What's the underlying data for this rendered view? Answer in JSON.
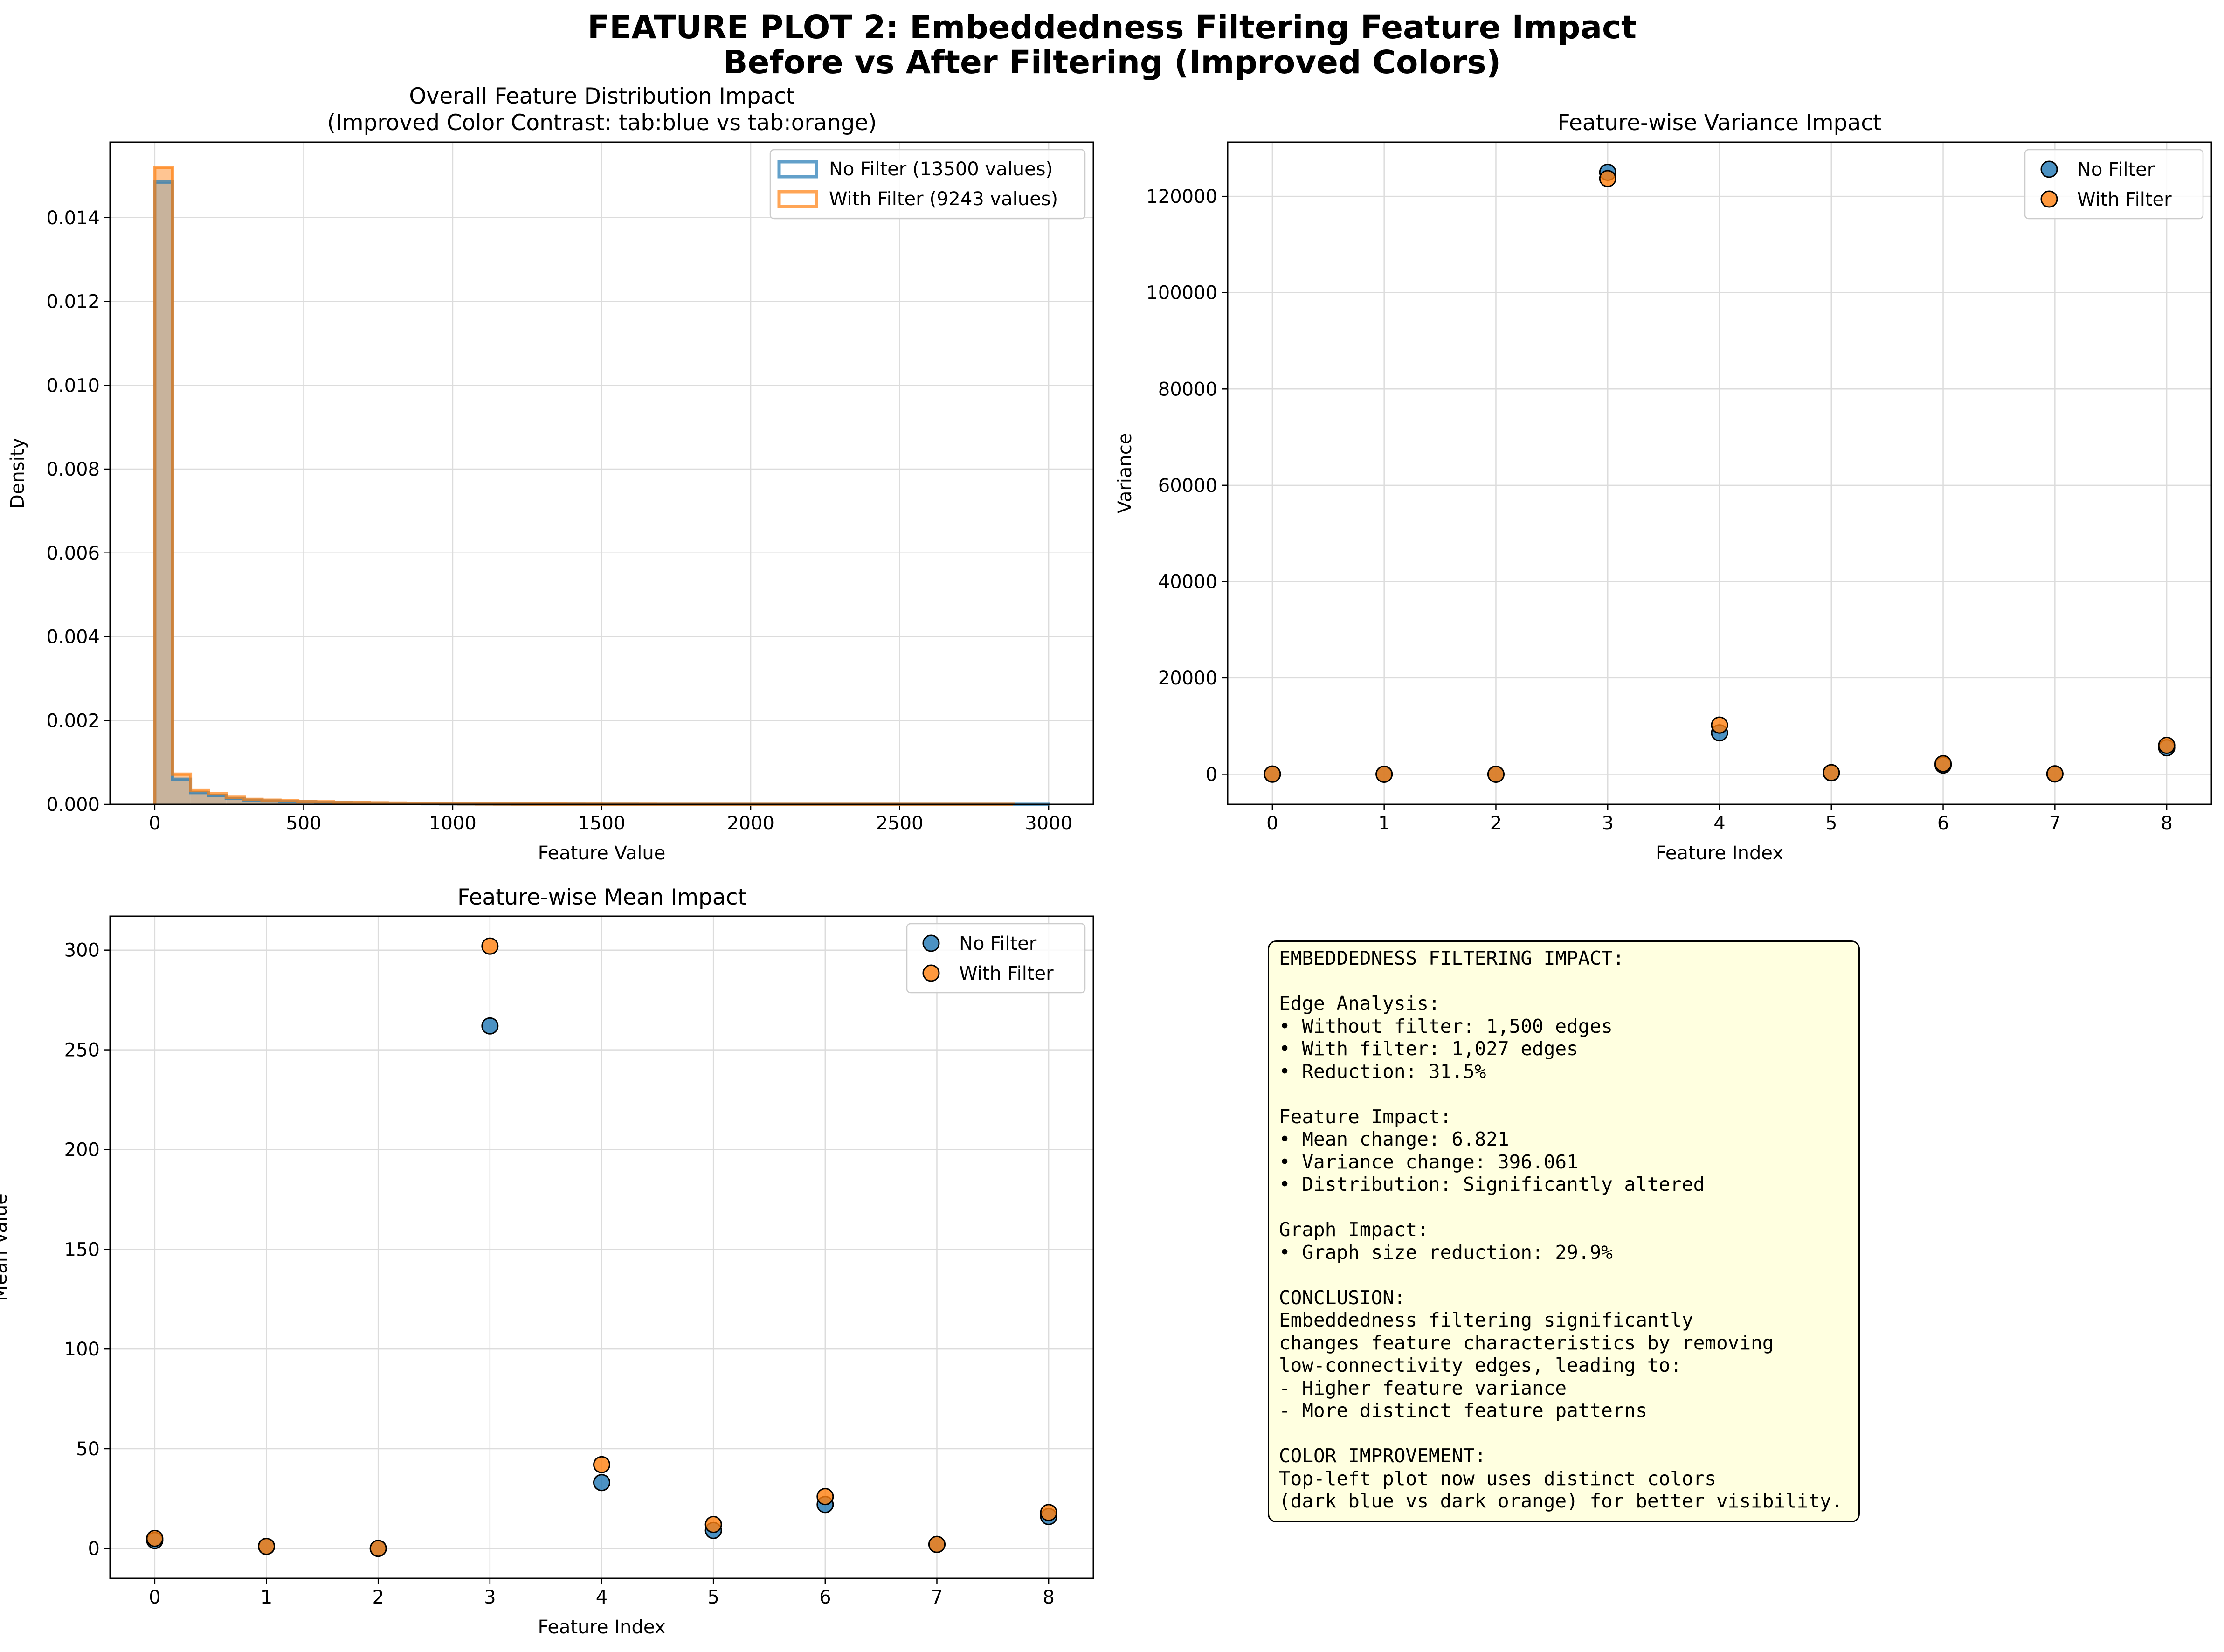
{
  "figure": {
    "title_line1": "FEATURE PLOT 2: Embeddedness Filtering Feature Impact",
    "title_line2": "Before vs After Filtering (Improved Colors)"
  },
  "colors": {
    "no_filter": "#1f77b4",
    "with_filter": "#ff7f0e",
    "hist_overlap": "#c8b39c",
    "textbox_bg": "#ffffe0"
  },
  "chart_data": [
    {
      "type": "bar",
      "subtype": "histogram",
      "title_line1": "Overall Feature Distribution Impact",
      "title_line2": "(Improved Color Contrast: tab:blue vs tab:orange)",
      "xlabel": "Feature Value",
      "ylabel": "Density",
      "xlim": [
        -150,
        3150
      ],
      "ylim": [
        0,
        0.0158
      ],
      "xticks": [
        0,
        500,
        1000,
        1500,
        2000,
        2500,
        3000
      ],
      "yticks": [
        0.0,
        0.002,
        0.004,
        0.006,
        0.008,
        0.01,
        0.012,
        0.014
      ],
      "ytick_labels": [
        "0.000",
        "0.002",
        "0.004",
        "0.006",
        "0.008",
        "0.010",
        "0.012",
        "0.014"
      ],
      "bin_width": 60,
      "bin_start": 0,
      "grid": true,
      "legend_position": "top-right",
      "series": [
        {
          "name": "No Filter (13500 values)",
          "values": [
            0.01485,
            0.0006,
            0.00028,
            0.00021,
            0.00014,
            0.0001,
            8e-05,
            7e-05,
            6e-05,
            5e-05,
            4e-05,
            3.5e-05,
            3e-05,
            2.5e-05,
            2e-05,
            1.5e-05,
            1.2e-05,
            1e-05,
            8e-06,
            7e-06,
            6e-06,
            5e-06,
            4e-06,
            4e-06,
            3e-06,
            3e-06,
            3e-06,
            2e-06,
            2e-06,
            2e-06,
            2e-06,
            2e-06,
            1e-06,
            1e-06,
            1e-06,
            1e-06,
            1e-06,
            1e-06,
            1e-06,
            1e-06,
            1e-06,
            1e-06,
            1e-06,
            1e-06,
            1e-06,
            1e-06,
            1e-06,
            1e-06,
            1e-06,
            1e-06
          ]
        },
        {
          "name": "With Filter (9243 values)",
          "values": [
            0.0152,
            0.00072,
            0.00033,
            0.00025,
            0.00017,
            0.00012,
            0.0001,
            9e-05,
            7e-05,
            6e-05,
            5e-05,
            4e-05,
            3.5e-05,
            3e-05,
            2.5e-05,
            2e-05,
            1.5e-05,
            1.2e-05,
            1e-05,
            8e-06,
            7e-06,
            6e-06,
            5e-06,
            4e-06,
            4e-06,
            3e-06,
            3e-06,
            3e-06,
            2e-06,
            2e-06,
            2e-06,
            2e-06,
            2e-06,
            1e-06,
            1e-06,
            1e-06,
            1e-06,
            1e-06,
            1e-06,
            1e-06,
            1e-06,
            1e-06,
            1e-06,
            1e-06,
            1e-06,
            1e-06,
            1e-06,
            1e-06
          ]
        }
      ]
    },
    {
      "type": "scatter",
      "title": "Feature-wise Variance Impact",
      "xlabel": "Feature Index",
      "ylabel": "Variance",
      "xlim": [
        -0.4,
        8.4
      ],
      "ylim": [
        -6250,
        131250
      ],
      "xticks": [
        0,
        1,
        2,
        3,
        4,
        5,
        6,
        7,
        8
      ],
      "yticks": [
        0,
        20000,
        40000,
        60000,
        80000,
        100000,
        120000
      ],
      "grid": true,
      "legend_position": "top-right",
      "series": [
        {
          "name": "No Filter",
          "x": [
            0,
            1,
            2,
            3,
            4,
            5,
            6,
            7,
            8
          ],
          "y": [
            20,
            1,
            0,
            125000,
            8600,
            280,
            1900,
            60,
            5500
          ]
        },
        {
          "name": "With Filter",
          "x": [
            0,
            1,
            2,
            3,
            4,
            5,
            6,
            7,
            8
          ],
          "y": [
            30,
            1,
            0,
            123700,
            10200,
            320,
            2200,
            80,
            6000
          ]
        }
      ]
    },
    {
      "type": "scatter",
      "title": "Feature-wise Mean Impact",
      "xlabel": "Feature Index",
      "ylabel": "Mean Value",
      "xlim": [
        -0.4,
        8.4
      ],
      "ylim": [
        -15,
        317
      ],
      "xticks": [
        0,
        1,
        2,
        3,
        4,
        5,
        6,
        7,
        8
      ],
      "yticks": [
        0,
        50,
        100,
        150,
        200,
        250,
        300
      ],
      "grid": true,
      "legend_position": "top-right",
      "series": [
        {
          "name": "No Filter",
          "x": [
            0,
            1,
            2,
            3,
            4,
            5,
            6,
            7,
            8
          ],
          "y": [
            4,
            1,
            0,
            262,
            33,
            9,
            22,
            2,
            16
          ]
        },
        {
          "name": "With Filter",
          "x": [
            0,
            1,
            2,
            3,
            4,
            5,
            6,
            7,
            8
          ],
          "y": [
            5,
            1,
            0,
            302,
            42,
            12,
            26,
            2,
            18
          ]
        }
      ]
    }
  ],
  "textbox": {
    "lines": [
      "EMBEDDEDNESS FILTERING IMPACT:",
      "",
      "Edge Analysis:",
      "• Without filter: 1,500 edges",
      "• With filter: 1,027 edges",
      "• Reduction: 31.5%",
      "",
      "Feature Impact:",
      "• Mean change: 6.821",
      "• Variance change: 396.061",
      "• Distribution: Significantly altered",
      "",
      "Graph Impact:",
      "• Graph size reduction: 29.9%",
      "",
      "CONCLUSION:",
      "Embeddedness filtering significantly",
      "changes feature characteristics by removing",
      "low-connectivity edges, leading to:",
      "- Higher feature variance",
      "- More distinct feature patterns",
      "",
      "COLOR IMPROVEMENT:",
      "Top-left plot now uses distinct colors",
      "(dark blue vs dark orange) for better visibility."
    ]
  }
}
